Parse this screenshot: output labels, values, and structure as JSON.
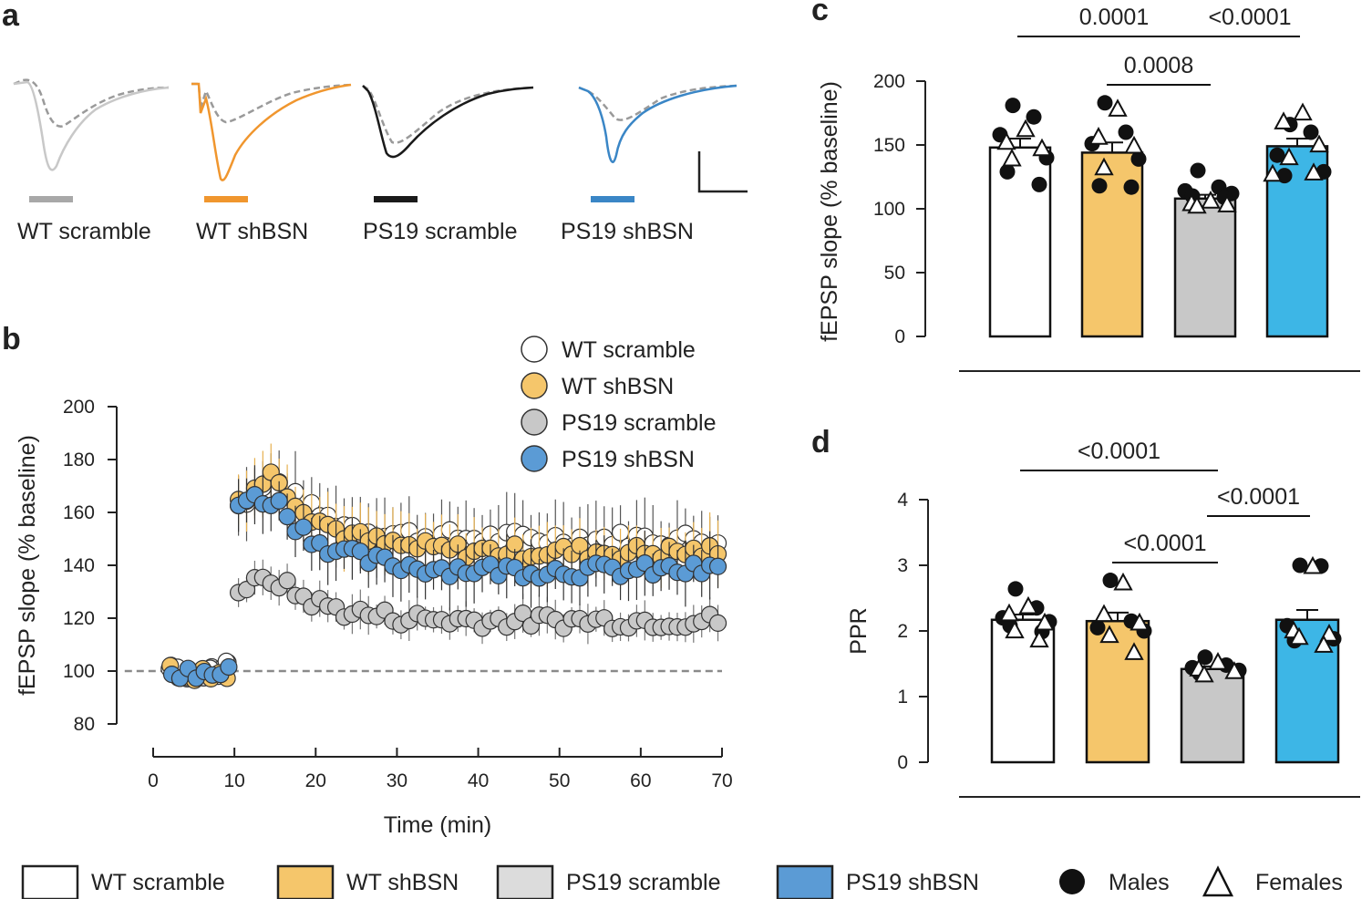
{
  "panels": {
    "a": "a",
    "b": "b",
    "c": "c",
    "d": "d"
  },
  "colors": {
    "wt_scramble": "#ffffff",
    "wt_shbsn": "#f5c66b",
    "ps19_scramble": "#c8c8c8",
    "ps19_shbsn": "#5b9bd5",
    "bar_ps19_shbsn": "#3db6e6",
    "trace_wt_scramble": "#c8c8c8",
    "trace_wt_shbsn": "#f0962e",
    "trace_ps19_scramble": "#1a1a1a",
    "trace_ps19_shbsn": "#3a86c6",
    "dashed": "#9a9a9a",
    "axis": "#222222"
  },
  "traces": {
    "labels": [
      "WT scramble",
      "WT shBSN",
      "PS19 scramble",
      "PS19 shBSN"
    ]
  },
  "legend": {
    "groups": [
      "WT scramble",
      "WT shBSN",
      "PS19 scramble",
      "PS19 shBSN"
    ],
    "males": "Males",
    "females": "Females"
  },
  "chart_data": [
    {
      "id": "b",
      "type": "scatter",
      "xlabel": "Time (min)",
      "ylabel": "fEPSP slope (% baseline)",
      "xlim": [
        0,
        70
      ],
      "ylim": [
        80,
        200
      ],
      "xticks": [
        "0",
        "10",
        "20",
        "30",
        "40",
        "50",
        "60",
        "70"
      ],
      "yticks": [
        "80",
        "100",
        "120",
        "140",
        "160",
        "180",
        "200"
      ],
      "baseline": 100,
      "legend": [
        "WT scramble",
        "WT shBSN",
        "PS19 scramble",
        "PS19 shBSN"
      ],
      "baseline_period": [
        2,
        10
      ],
      "post_period": [
        10.5,
        70
      ],
      "series": [
        {
          "name": "WT scramble",
          "baseline_mean": 101,
          "post_start": 162,
          "post_peak": 173,
          "post_plateau": 150,
          "error": 12
        },
        {
          "name": "WT shBSN",
          "baseline_mean": 100,
          "post_start": 165,
          "post_peak": 175,
          "post_plateau": 145,
          "error": 10
        },
        {
          "name": "PS19 scramble",
          "baseline_mean": 100,
          "post_start": 131,
          "post_peak": 135,
          "post_plateau": 119,
          "error": 6
        },
        {
          "name": "PS19 shBSN",
          "baseline_mean": 99,
          "post_start": 165,
          "post_peak": 165,
          "post_plateau": 138,
          "error": 10
        }
      ]
    },
    {
      "id": "c",
      "type": "bar",
      "ylabel": "fEPSP slope (% baseline)",
      "ylim": [
        0,
        200
      ],
      "yticks": [
        "0",
        "50",
        "100",
        "150",
        "200"
      ],
      "categories": [
        "WT scramble",
        "WT shBSN",
        "PS19 scramble",
        "PS19 shBSN"
      ],
      "values": [
        148,
        144,
        108,
        149
      ],
      "errors": [
        7,
        8,
        3,
        6
      ],
      "points": [
        {
          "males": [
            181,
            172,
            158,
            140,
            129,
            119
          ],
          "females": [
            162,
            152,
            147,
            139
          ]
        },
        {
          "males": [
            183,
            160,
            151,
            139,
            118,
            117
          ],
          "females": [
            178,
            156,
            149,
            132
          ]
        },
        {
          "males": [
            130,
            117,
            114,
            112,
            110,
            109
          ],
          "females": [
            106,
            104,
            103,
            102
          ]
        },
        {
          "males": [
            166,
            160,
            142,
            129,
            126
          ],
          "females": [
            175,
            168,
            150,
            140,
            128,
            127
          ]
        }
      ],
      "significance": [
        {
          "from": 0,
          "to": 2,
          "label": "0.0001",
          "level": 1
        },
        {
          "from": 2,
          "to": 3,
          "label": "<0.0001",
          "level": 1
        },
        {
          "from": 1,
          "to": 2,
          "label": "0.0008",
          "level": 0
        }
      ]
    },
    {
      "id": "d",
      "type": "bar",
      "ylabel": "PPR",
      "ylim": [
        0,
        4
      ],
      "yticks": [
        "0",
        "1",
        "2",
        "3",
        "4"
      ],
      "categories": [
        "WT scramble",
        "WT shBSN",
        "PS19 scramble",
        "PS19 shBSN"
      ],
      "values": [
        2.17,
        2.15,
        1.42,
        2.17
      ],
      "errors": [
        0.08,
        0.13,
        0.04,
        0.15
      ],
      "points": [
        {
          "males": [
            2.64,
            2.35,
            2.2,
            2.14,
            2.08,
            1.99
          ],
          "females": [
            2.37,
            2.26,
            2.12,
            2.0,
            1.86
          ]
        },
        {
          "males": [
            2.77,
            2.15,
            2.05,
            2.0
          ],
          "females": [
            2.73,
            2.25,
            2.12,
            1.93,
            1.67
          ]
        },
        {
          "males": [
            1.6,
            1.48,
            1.44,
            1.4,
            1.35
          ],
          "females": [
            1.52,
            1.42,
            1.38,
            1.33
          ]
        },
        {
          "males": [
            3.0,
            2.99,
            2.08,
            1.88,
            1.85
          ],
          "females": [
            2.98,
            2.0,
            1.95,
            1.9,
            1.78
          ]
        }
      ],
      "significance": [
        {
          "from": 0,
          "to": 2,
          "label": "<0.0001",
          "level": 2
        },
        {
          "from": 2,
          "to": 3,
          "label": "<0.0001",
          "level": 1
        },
        {
          "from": 1,
          "to": 2,
          "label": "<0.0001",
          "level": 0
        }
      ]
    }
  ]
}
